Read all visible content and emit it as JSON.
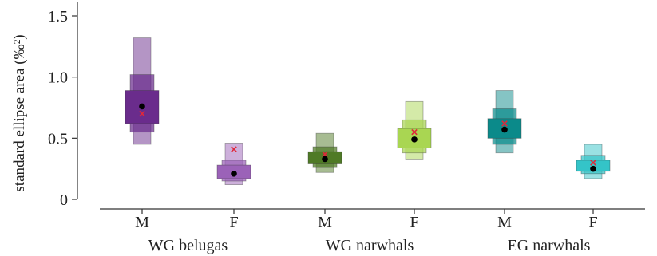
{
  "chart_data": {
    "type": "density-boxplot",
    "ylabel": "standard ellipse area (‰²)",
    "ylim": [
      0,
      1.6
    ],
    "yticks": [
      0,
      0.5,
      1.0,
      1.5
    ],
    "ytick_labels": [
      "0",
      "0.5",
      "1.0",
      "1.5"
    ],
    "groups": [
      "WG belugas",
      "WG narwhals",
      "EG narwhals"
    ],
    "categories": [
      {
        "group": "WG belugas",
        "label": "M",
        "color": "#6a2c8c",
        "ci95": [
          0.45,
          1.32
        ],
        "ci75": [
          0.55,
          1.02
        ],
        "ci50": [
          0.62,
          0.89
        ],
        "mode": 0.76,
        "ml": 0.7
      },
      {
        "group": "WG belugas",
        "label": "F",
        "color": "#9b62b8",
        "ci95": [
          0.12,
          0.46
        ],
        "ci75": [
          0.15,
          0.32
        ],
        "ci50": [
          0.17,
          0.28
        ],
        "mode": 0.21,
        "ml": 0.41
      },
      {
        "group": "WG narwhals",
        "label": "M",
        "color": "#4f7a26",
        "ci95": [
          0.22,
          0.54
        ],
        "ci75": [
          0.26,
          0.43
        ],
        "ci50": [
          0.29,
          0.39
        ],
        "mode": 0.33,
        "ml": 0.37
      },
      {
        "group": "WG narwhals",
        "label": "F",
        "color": "#a9d652",
        "ci95": [
          0.33,
          0.8
        ],
        "ci75": [
          0.38,
          0.65
        ],
        "ci50": [
          0.42,
          0.58
        ],
        "mode": 0.49,
        "ml": 0.55
      },
      {
        "group": "EG narwhals",
        "label": "M",
        "color": "#0b8a8a",
        "ci95": [
          0.38,
          0.89
        ],
        "ci75": [
          0.45,
          0.74
        ],
        "ci50": [
          0.5,
          0.66
        ],
        "mode": 0.57,
        "ml": 0.62
      },
      {
        "group": "EG narwhals",
        "label": "F",
        "color": "#34c4c8",
        "ci95": [
          0.17,
          0.45
        ],
        "ci75": [
          0.21,
          0.36
        ],
        "ci50": [
          0.23,
          0.32
        ],
        "mode": 0.25,
        "ml": 0.3
      }
    ],
    "marker_colors": {
      "mode": "#000000",
      "ml": "#e0283a"
    },
    "grid": false,
    "legend": "none"
  }
}
